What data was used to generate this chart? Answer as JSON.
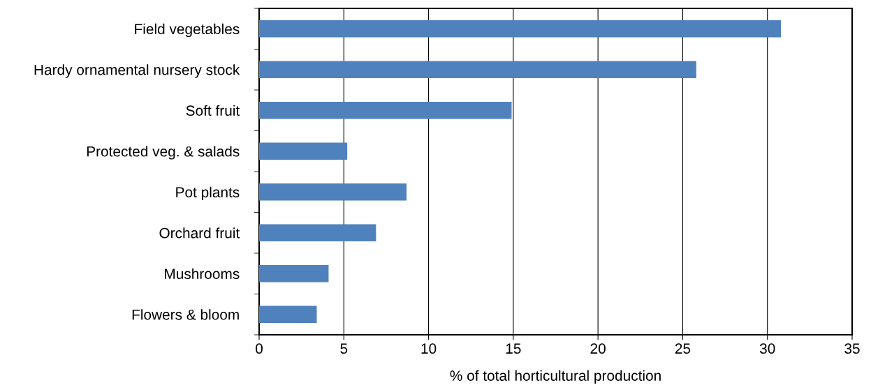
{
  "chart_data": {
    "type": "bar",
    "orientation": "horizontal",
    "xlabel": "% of total horticultural production",
    "categories": [
      "Field vegetables",
      "Hardy ornamental nursery stock",
      "Soft fruit",
      "Protected veg. & salads",
      "Pot plants",
      "Orchard fruit",
      "Mushrooms",
      "Flowers & bloom"
    ],
    "values": [
      30.8,
      25.8,
      14.9,
      5.2,
      8.7,
      6.9,
      4.1,
      3.4
    ],
    "color": "#4f81bd",
    "xlim": [
      0,
      35
    ],
    "xticks": [
      0,
      5,
      10,
      15,
      20,
      25,
      30,
      35
    ],
    "grid": "x"
  }
}
